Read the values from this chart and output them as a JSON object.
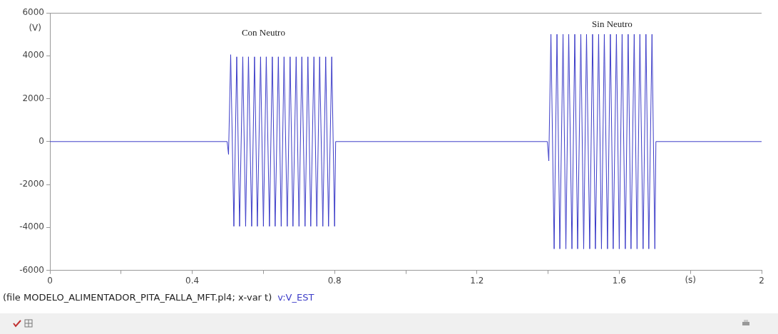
{
  "chart_data": {
    "type": "line",
    "xlabel": "(s)",
    "ylabel": "(V)",
    "xlim": [
      0,
      2
    ],
    "xticks": [
      0,
      {
        "value": 0.2,
        "label": null
      },
      0.4,
      {
        "value": 0.6,
        "label": null
      },
      0.8,
      {
        "value": 1.0,
        "label": null
      },
      1.2,
      {
        "value": 1.4,
        "label": null
      },
      1.6,
      {
        "value": 1.8,
        "label": null
      },
      2
    ],
    "ylim": [
      -6000,
      6000
    ],
    "yticks": [
      -6000,
      -4000,
      -2000,
      0,
      2000,
      4000,
      6000
    ],
    "grid": false,
    "legend": "bottom left",
    "marker": "none",
    "line_style": "solid",
    "annotations": [
      "Con Neutro",
      "Sin Neutro",
      "(file MODELO_ALIMENTADOR_PITA_FALLA_MFT.pl4; x-var t)"
    ],
    "series": [
      {
        "name": "v:V_EST",
        "color": "#3c3cc8",
        "x": [
          0,
          0.498,
          0.502,
          0.508,
          0.517,
          0.525,
          0.533,
          0.542,
          0.55,
          0.558,
          0.567,
          0.575,
          0.583,
          0.592,
          0.6,
          0.608,
          0.617,
          0.625,
          0.633,
          0.642,
          0.65,
          0.658,
          0.667,
          0.675,
          0.683,
          0.692,
          0.7,
          0.708,
          0.717,
          0.725,
          0.733,
          0.742,
          0.75,
          0.758,
          0.767,
          0.775,
          0.783,
          0.792,
          0.8,
          0.803,
          1.398,
          1.402,
          1.408,
          1.417,
          1.425,
          1.433,
          1.442,
          1.45,
          1.458,
          1.467,
          1.475,
          1.483,
          1.492,
          1.5,
          1.508,
          1.517,
          1.525,
          1.533,
          1.542,
          1.55,
          1.558,
          1.567,
          1.575,
          1.583,
          1.592,
          1.6,
          1.608,
          1.617,
          1.625,
          1.633,
          1.642,
          1.65,
          1.658,
          1.667,
          1.675,
          1.683,
          1.692,
          1.7,
          1.703,
          2
        ],
        "values": [
          0,
          0,
          -600,
          4050,
          -3950,
          3950,
          -3950,
          3950,
          -3950,
          3950,
          -3950,
          3950,
          -3950,
          3950,
          -3950,
          3950,
          -3950,
          3950,
          -3950,
          3950,
          -3950,
          3950,
          -3950,
          3950,
          -3950,
          3950,
          -3950,
          3950,
          -3950,
          3950,
          -3950,
          3950,
          -3950,
          3950,
          -3950,
          3950,
          -3950,
          3950,
          -3950,
          0,
          0,
          -900,
          5000,
          -5000,
          5000,
          -5000,
          5000,
          -5000,
          5000,
          -5000,
          5000,
          -5000,
          5000,
          -5000,
          5000,
          -5000,
          5000,
          -5000,
          5000,
          -5000,
          5000,
          -5000,
          5000,
          -5000,
          5000,
          -5000,
          5000,
          -5000,
          5000,
          -5000,
          5000,
          -5000,
          5000,
          -5000,
          5000,
          -5000,
          5000,
          -5000,
          0,
          0
        ]
      }
    ]
  }
}
